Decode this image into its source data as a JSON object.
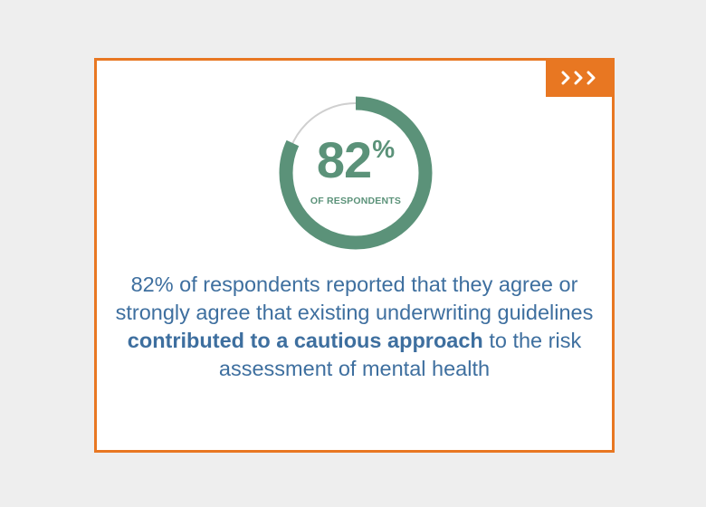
{
  "stat": {
    "value": 82,
    "number": "82",
    "percent_sign": "%",
    "caption": "OF RESPONDENTS"
  },
  "body": {
    "part1": "82% of respondents reported that they agree or strongly agree that existing underwriting guidelines ",
    "emphasis": "contributed to a cautious approach",
    "part2": " to the risk assessment of mental health"
  },
  "icons": {
    "next": "triple-chevron-right-icon"
  },
  "colors": {
    "background": "#eeeeee",
    "card": "#ffffff",
    "accent_orange": "#e87722",
    "ring_green": "#5b9279",
    "ring_track": "#cfcfcf",
    "text_blue": "#3e6f9f"
  }
}
